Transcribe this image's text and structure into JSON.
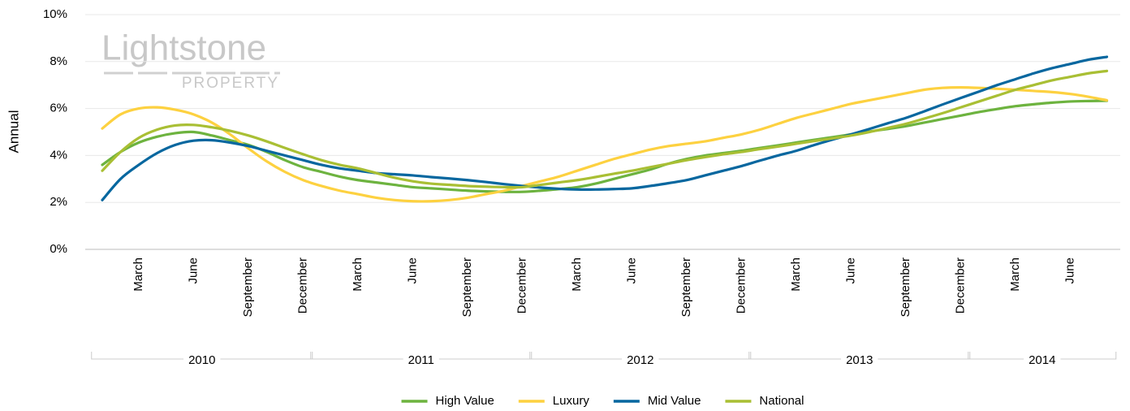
{
  "chart_data": {
    "type": "line",
    "y_label": "Annual",
    "watermark": {
      "brand": "Lightstone",
      "sub": "PROPERTY"
    },
    "categories": [
      null,
      null,
      "March",
      null,
      null,
      "June",
      null,
      null,
      "September",
      null,
      null,
      "December",
      null,
      null,
      "March",
      null,
      null,
      "June",
      null,
      null,
      "September",
      null,
      null,
      "December",
      null,
      null,
      "March",
      null,
      null,
      "June",
      null,
      null,
      "September",
      null,
      null,
      "December",
      null,
      null,
      "March",
      null,
      null,
      "June",
      null,
      null,
      "September",
      null,
      null,
      "December",
      null,
      null,
      "March",
      null,
      null,
      "June",
      null,
      null
    ],
    "years": [
      "2010",
      "2011",
      "2012",
      "2013",
      "2014"
    ],
    "ylim": [
      0,
      10
    ],
    "yticks": [
      {
        "value": 0,
        "label": "0%"
      },
      {
        "value": 2,
        "label": "2%"
      },
      {
        "value": 4,
        "label": "4%"
      },
      {
        "value": 6,
        "label": "6%"
      },
      {
        "value": 8,
        "label": "8%"
      },
      {
        "value": 10,
        "label": "10%"
      }
    ],
    "grid": true,
    "legend": "bottom",
    "series": [
      {
        "name": "High Value",
        "color": "#6db33f",
        "values": [
          3.6,
          4.15,
          4.55,
          4.8,
          4.95,
          5.0,
          4.85,
          4.65,
          4.45,
          4.15,
          3.8,
          3.5,
          3.3,
          3.1,
          2.95,
          2.85,
          2.75,
          2.65,
          2.6,
          2.55,
          2.5,
          2.47,
          2.45,
          2.45,
          2.5,
          2.57,
          2.65,
          2.8,
          3.0,
          3.2,
          3.4,
          3.65,
          3.85,
          4.0,
          4.1,
          4.2,
          4.32,
          4.43,
          4.55,
          4.67,
          4.78,
          4.9,
          5.02,
          5.13,
          5.25,
          5.4,
          5.55,
          5.7,
          5.85,
          5.98,
          6.1,
          6.18,
          6.25,
          6.3,
          6.32,
          6.33
        ]
      },
      {
        "name": "Luxury",
        "color": "#fdd140",
        "values": [
          5.15,
          5.75,
          6.0,
          6.05,
          5.95,
          5.75,
          5.4,
          4.9,
          4.3,
          3.75,
          3.3,
          2.95,
          2.7,
          2.5,
          2.35,
          2.2,
          2.1,
          2.05,
          2.05,
          2.1,
          2.2,
          2.35,
          2.5,
          2.7,
          2.9,
          3.1,
          3.35,
          3.6,
          3.85,
          4.05,
          4.25,
          4.4,
          4.5,
          4.6,
          4.75,
          4.9,
          5.1,
          5.35,
          5.6,
          5.8,
          6.0,
          6.2,
          6.35,
          6.5,
          6.65,
          6.8,
          6.88,
          6.9,
          6.88,
          6.84,
          6.8,
          6.75,
          6.7,
          6.62,
          6.5,
          6.35
        ]
      },
      {
        "name": "Mid Value",
        "color": "#07679f",
        "values": [
          2.1,
          3.0,
          3.6,
          4.1,
          4.45,
          4.63,
          4.65,
          4.55,
          4.4,
          4.2,
          4.0,
          3.8,
          3.6,
          3.45,
          3.35,
          3.25,
          3.2,
          3.15,
          3.08,
          3.02,
          2.95,
          2.87,
          2.78,
          2.7,
          2.63,
          2.58,
          2.55,
          2.55,
          2.57,
          2.6,
          2.7,
          2.82,
          2.95,
          3.15,
          3.35,
          3.55,
          3.78,
          4.0,
          4.2,
          4.45,
          4.68,
          4.9,
          5.13,
          5.37,
          5.6,
          5.88,
          6.17,
          6.45,
          6.72,
          7.0,
          7.25,
          7.5,
          7.72,
          7.9,
          8.08,
          8.2
        ]
      },
      {
        "name": "National",
        "color": "#a9bf34",
        "values": [
          3.35,
          4.15,
          4.75,
          5.1,
          5.28,
          5.3,
          5.2,
          5.05,
          4.85,
          4.6,
          4.32,
          4.05,
          3.8,
          3.6,
          3.45,
          3.25,
          3.05,
          2.9,
          2.8,
          2.75,
          2.7,
          2.67,
          2.65,
          2.65,
          2.75,
          2.85,
          2.95,
          3.08,
          3.22,
          3.35,
          3.5,
          3.65,
          3.8,
          3.93,
          4.05,
          4.15,
          4.27,
          4.38,
          4.5,
          4.62,
          4.73,
          4.85,
          5.0,
          5.17,
          5.35,
          5.57,
          5.8,
          6.05,
          6.3,
          6.55,
          6.8,
          7.0,
          7.2,
          7.35,
          7.5,
          7.6
        ]
      }
    ]
  }
}
